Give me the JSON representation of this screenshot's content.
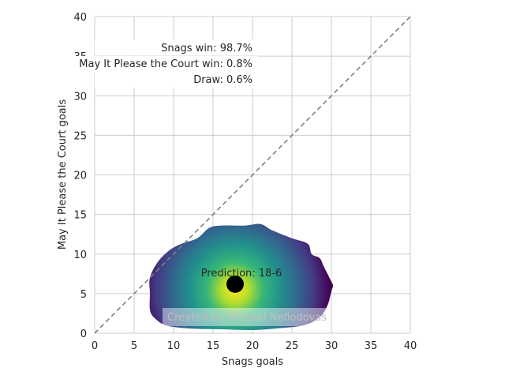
{
  "chart_data": {
    "type": "heatmap",
    "xlabel": "Snags goals",
    "ylabel": "May It Please the Court goals",
    "xlim": [
      0,
      40
    ],
    "ylim": [
      0,
      40
    ],
    "xticks": [
      0,
      5,
      10,
      15,
      20,
      25,
      30,
      35,
      40
    ],
    "yticks": [
      0,
      5,
      10,
      15,
      20,
      25,
      30,
      35,
      40
    ],
    "grid": true,
    "reference_line": "y = x",
    "prediction": {
      "label": "Prediction: 18-6",
      "x": 17.8,
      "y": 6.2
    },
    "win_probabilities": [
      {
        "label": "Snags win: 98.7%",
        "team": "Snags",
        "value": 98.7
      },
      {
        "label": "May It Please the Court win: 0.8%",
        "team": "May It Please the Court",
        "value": 0.8
      },
      {
        "label": "Draw: 0.6%",
        "value": 0.6
      }
    ],
    "density": {
      "colormap": "viridis",
      "peak": {
        "x": 17.8,
        "y": 5.5
      },
      "outline": [
        [
          7,
          7
        ],
        [
          8,
          9
        ],
        [
          9.5,
          10.5
        ],
        [
          11,
          11.3
        ],
        [
          13,
          12
        ],
        [
          14.5,
          13.3
        ],
        [
          16,
          13.6
        ],
        [
          19,
          13.6
        ],
        [
          21,
          13.8
        ],
        [
          22.5,
          13
        ],
        [
          25,
          12
        ],
        [
          27,
          11.3
        ],
        [
          27.5,
          10
        ],
        [
          28.5,
          9.5
        ],
        [
          29,
          8.5
        ],
        [
          29.5,
          7.5
        ],
        [
          30,
          6.5
        ],
        [
          30.2,
          6
        ],
        [
          30,
          5.3
        ],
        [
          29.5,
          3.5
        ],
        [
          28.5,
          2
        ],
        [
          26.5,
          1
        ],
        [
          23,
          0.6
        ],
        [
          20,
          0.4
        ],
        [
          16,
          0.5
        ],
        [
          12,
          0.6
        ],
        [
          9,
          1
        ],
        [
          7.5,
          2
        ],
        [
          7,
          3
        ],
        [
          7,
          5
        ]
      ]
    },
    "watermark": "Created by Michael Nefiodovas"
  }
}
